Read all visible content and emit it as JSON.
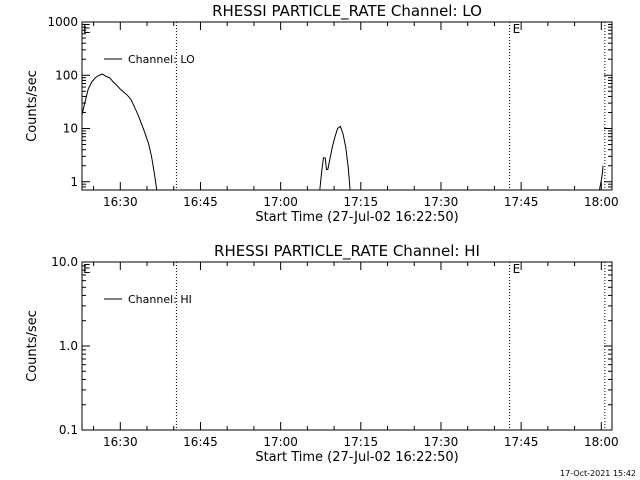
{
  "chart_data": [
    {
      "type": "line",
      "title": "RHESSI PARTICLE_RATE Channel: LO",
      "xlabel": "Start Time (27-Jul-02 16:22:50)",
      "ylabel": "Counts/sec",
      "yscale": "log",
      "xlim": [
        "16:22:50",
        "18:02:00"
      ],
      "ylim": [
        0.7,
        1000
      ],
      "x_ticks": [
        "16:30",
        "16:45",
        "17:00",
        "17:15",
        "17:30",
        "17:45",
        "18:00"
      ],
      "y_ticks": [
        "1",
        "10",
        "100",
        "1000"
      ],
      "legend": {
        "position": "top-left",
        "entries": [
          "Channel: LO"
        ]
      },
      "vertical_markers": [
        {
          "x": "16:40:30",
          "label": ""
        },
        {
          "x": "17:42:50",
          "label": "E"
        },
        {
          "x": "18:00:40",
          "label": ""
        }
      ],
      "top_left_marker": "E",
      "series": [
        {
          "name": "Channel: LO",
          "segments": [
            [
              [
                "16:22:50",
                18
              ],
              [
                "16:23:20",
                30
              ],
              [
                "16:24:00",
                55
              ],
              [
                "16:24:40",
                75
              ],
              [
                "16:25:20",
                90
              ],
              [
                "16:26:00",
                100
              ],
              [
                "16:26:40",
                105
              ],
              [
                "16:27:20",
                95
              ],
              [
                "16:28:00",
                90
              ],
              [
                "16:28:40",
                75
              ],
              [
                "16:29:20",
                65
              ],
              [
                "16:30:00",
                55
              ],
              [
                "16:30:40",
                48
              ],
              [
                "16:31:20",
                42
              ],
              [
                "16:32:00",
                35
              ],
              [
                "16:32:40",
                25
              ],
              [
                "16:33:20",
                18
              ],
              [
                "16:34:00",
                12
              ],
              [
                "16:34:40",
                8
              ],
              [
                "16:35:20",
                5
              ],
              [
                "16:35:50",
                3
              ],
              [
                "16:36:20",
                1.5
              ],
              [
                "16:36:50",
                0.7
              ]
            ],
            [
              [
                "17:07:20",
                0.7
              ],
              [
                "17:07:40",
                1.5
              ],
              [
                "17:08:00",
                2.8
              ],
              [
                "17:08:20",
                2.8
              ],
              [
                "17:08:35",
                1.7
              ],
              [
                "17:08:50",
                1.7
              ],
              [
                "17:09:10",
                2.5
              ],
              [
                "17:09:40",
                4.5
              ],
              [
                "17:10:10",
                7
              ],
              [
                "17:10:40",
                10
              ],
              [
                "17:11:10",
                11
              ],
              [
                "17:11:40",
                8
              ],
              [
                "17:12:10",
                4.5
              ],
              [
                "17:12:40",
                1.8
              ],
              [
                "17:13:00",
                0.7
              ]
            ],
            [
              [
                "17:59:40",
                0.7
              ],
              [
                "18:00:05",
                1.2
              ],
              [
                "18:00:20",
                2
              ]
            ]
          ]
        }
      ]
    },
    {
      "type": "line",
      "title": "RHESSI PARTICLE_RATE Channel: HI",
      "xlabel": "Start Time (27-Jul-02 16:22:50)",
      "ylabel": "Counts/sec",
      "yscale": "log",
      "xlim": [
        "16:22:50",
        "18:02:00"
      ],
      "ylim": [
        0.1,
        10
      ],
      "x_ticks": [
        "16:30",
        "16:45",
        "17:00",
        "17:15",
        "17:30",
        "17:45",
        "18:00"
      ],
      "y_ticks": [
        "0.1",
        "1.0",
        "10.0"
      ],
      "legend": {
        "position": "top-left",
        "entries": [
          "Channel: HI"
        ]
      },
      "vertical_markers": [
        {
          "x": "16:40:30",
          "label": ""
        },
        {
          "x": "17:42:50",
          "label": "E"
        },
        {
          "x": "18:00:40",
          "label": ""
        }
      ],
      "top_left_marker": "E",
      "series": [
        {
          "name": "Channel: HI",
          "segments": []
        }
      ]
    }
  ],
  "footer": {
    "date_stamp": "17-Oct-2021 15:42"
  }
}
